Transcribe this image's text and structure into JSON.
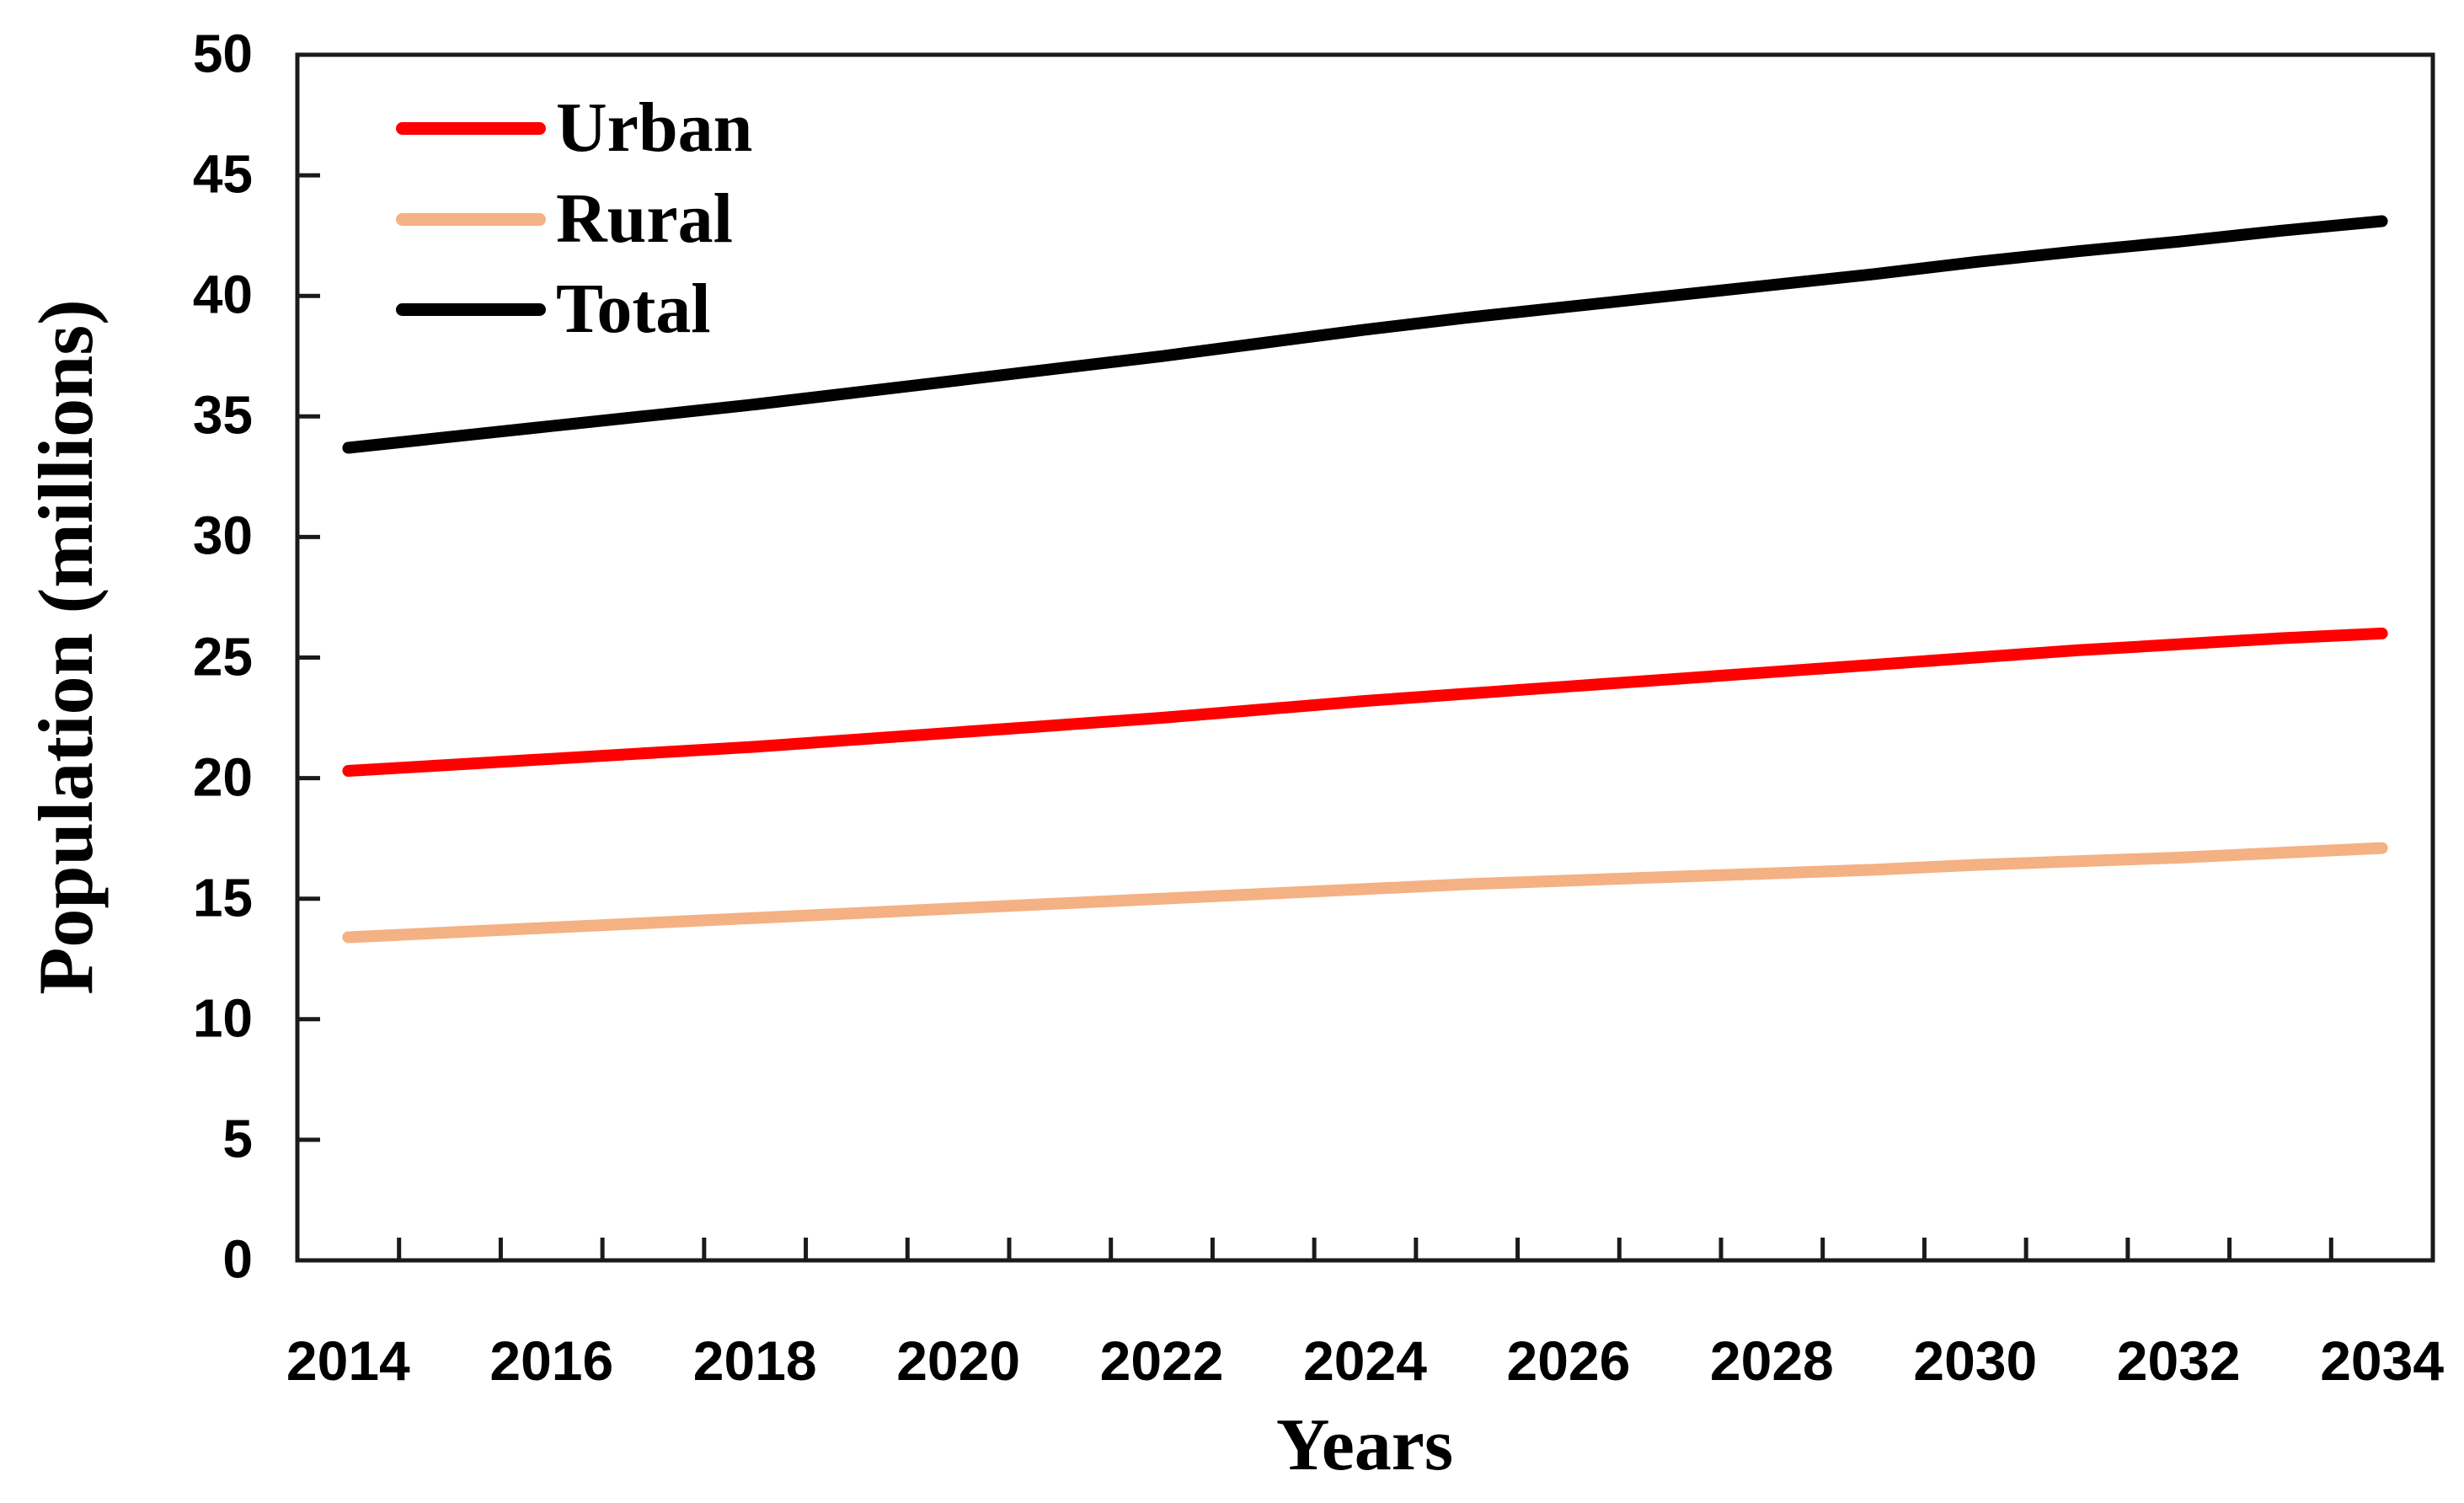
{
  "figure": {
    "background": "#FFFFFF",
    "axis_color": "#1A1A1A"
  },
  "chart_data": {
    "type": "line",
    "title": "",
    "xlabel": "Years",
    "ylabel": "Population (millions)",
    "x": [
      2014,
      2015,
      2016,
      2017,
      2018,
      2019,
      2020,
      2021,
      2022,
      2023,
      2024,
      2025,
      2026,
      2027,
      2028,
      2029,
      2030,
      2031,
      2032,
      2033,
      2034
    ],
    "x_tick_labels": [
      "2014",
      "2016",
      "2018",
      "2020",
      "2022",
      "2024",
      "2026",
      "2028",
      "2030",
      "2032",
      "2034"
    ],
    "y_ticks": [
      "0",
      "5",
      "10",
      "15",
      "20",
      "25",
      "30",
      "35",
      "40",
      "45",
      "50"
    ],
    "ylim": [
      0,
      50
    ],
    "grid": false,
    "legend_position": "top-left-inside",
    "series": [
      {
        "name": "Urban",
        "color": "#FF0000",
        "values": [
          20.3,
          20.55,
          20.8,
          21.05,
          21.3,
          21.6,
          21.9,
          22.2,
          22.5,
          22.85,
          23.2,
          23.5,
          23.8,
          24.1,
          24.4,
          24.7,
          25.0,
          25.3,
          25.55,
          25.8,
          26.0
        ]
      },
      {
        "name": "Rural",
        "color": "#F4B183",
        "values": [
          13.4,
          13.6,
          13.8,
          14.0,
          14.2,
          14.4,
          14.6,
          14.8,
          15.0,
          15.2,
          15.4,
          15.6,
          15.75,
          15.9,
          16.05,
          16.2,
          16.4,
          16.55,
          16.7,
          16.9,
          17.1
        ]
      },
      {
        "name": "Total",
        "color": "#000000",
        "values": [
          33.7,
          34.15,
          34.6,
          35.05,
          35.5,
          36.0,
          36.5,
          37.0,
          37.5,
          38.05,
          38.6,
          39.1,
          39.55,
          40.0,
          40.45,
          40.9,
          41.4,
          41.85,
          42.25,
          42.7,
          43.1
        ]
      }
    ]
  },
  "legend": {
    "items": [
      {
        "label": "Urban",
        "color": "#FF0000"
      },
      {
        "label": "Rural",
        "color": "#F4B183"
      },
      {
        "label": "Total",
        "color": "#000000"
      }
    ]
  }
}
